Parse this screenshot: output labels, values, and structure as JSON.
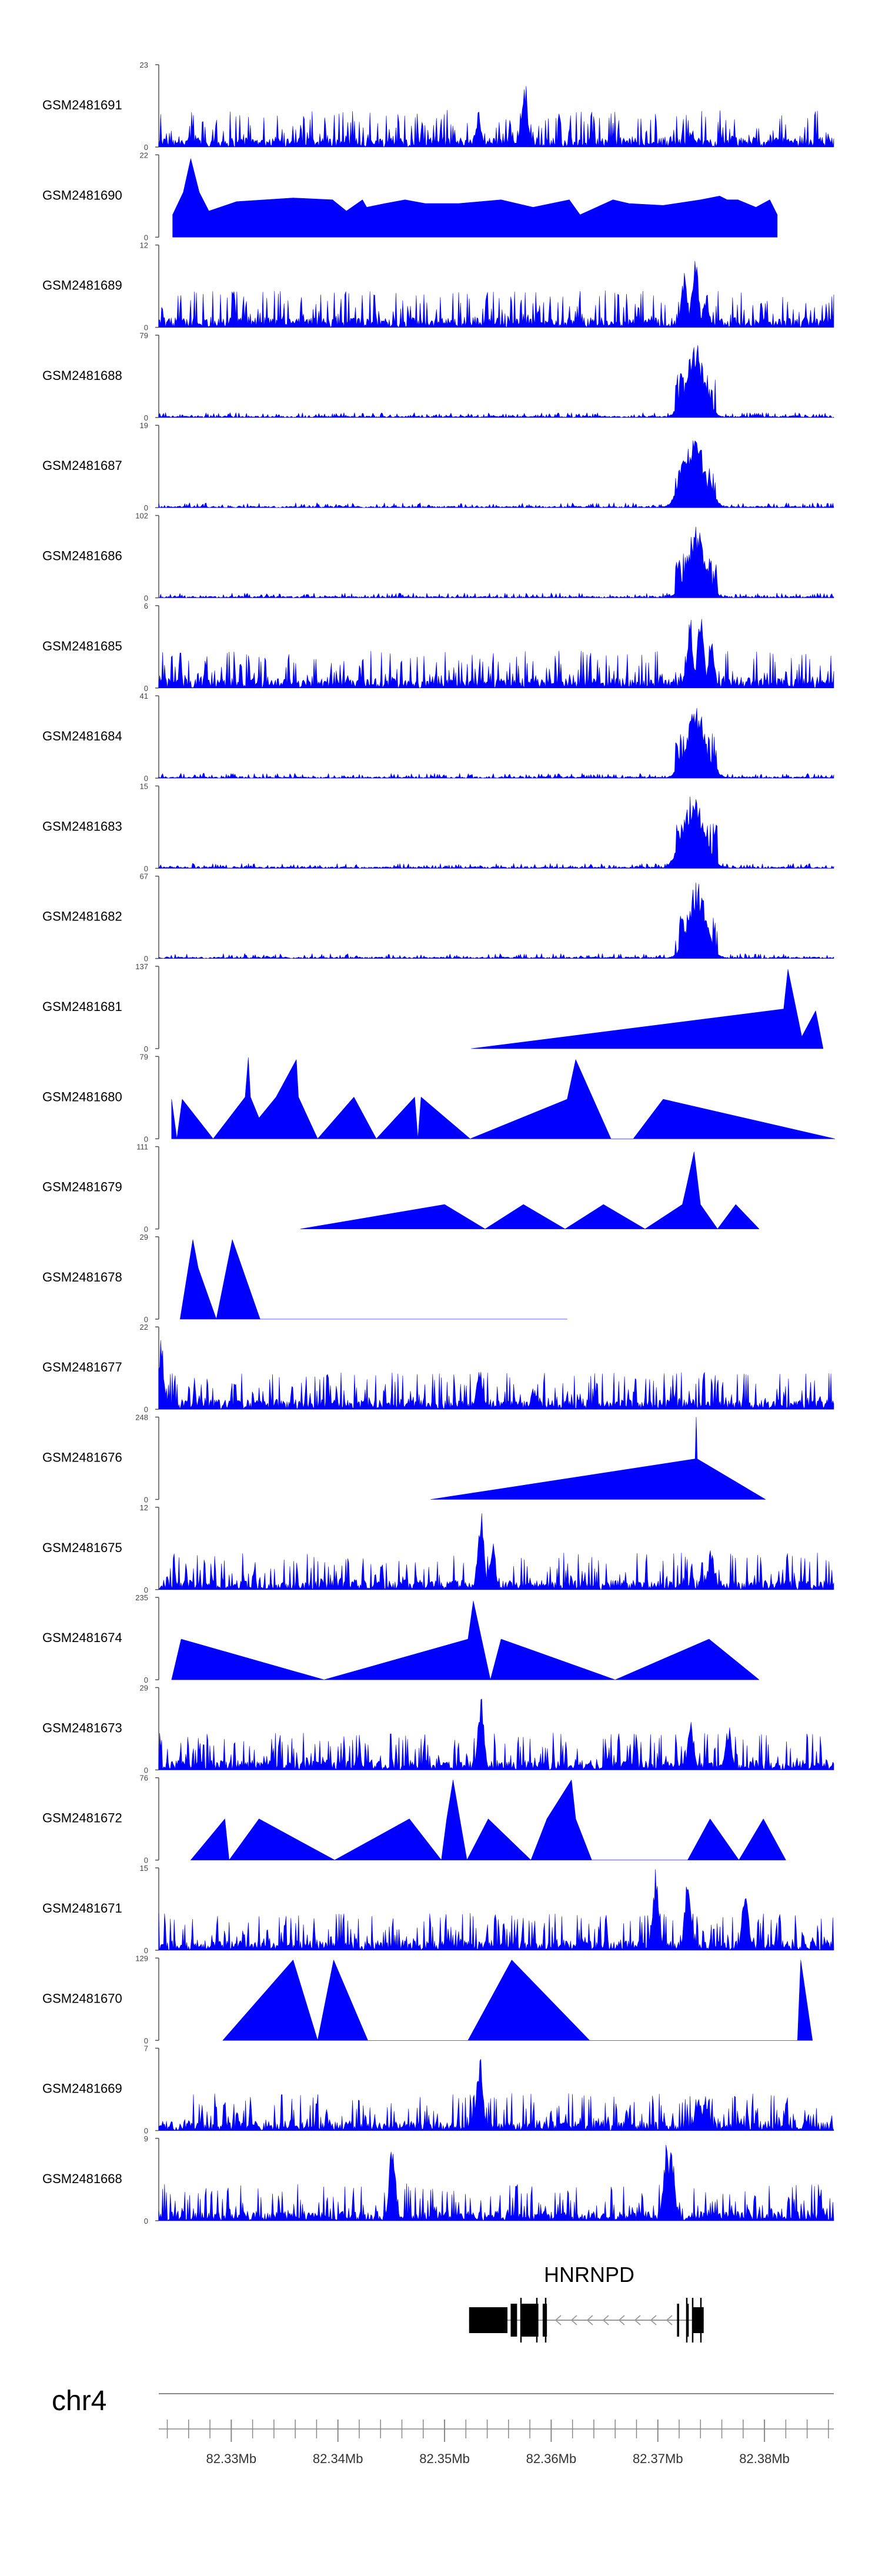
{
  "chart_data": {
    "type": "area",
    "title": "",
    "color": "#0000ff",
    "x_unit": "Mb",
    "xlim": [
      82.3232,
      82.3865
    ],
    "chromosome": "chr4",
    "axis_ticks": [
      {
        "value": 82.33,
        "label": "82.33Mb"
      },
      {
        "value": 82.34,
        "label": "82.34Mb"
      },
      {
        "value": 82.35,
        "label": "82.35Mb"
      },
      {
        "value": 82.36,
        "label": "82.36Mb"
      },
      {
        "value": 82.37,
        "label": "82.37Mb"
      },
      {
        "value": 82.38,
        "label": "82.38Mb"
      }
    ],
    "gene": {
      "name": "HNRNPD",
      "strand": "-",
      "start": 82.3523,
      "end": 82.3743,
      "exons": [
        [
          82.3523,
          82.3559
        ],
        [
          82.3562,
          82.3568
        ],
        [
          82.3572,
          82.3588
        ],
        [
          82.3592,
          82.3596
        ],
        [
          82.3718,
          82.372
        ],
        [
          82.3727,
          82.3729
        ],
        [
          82.3733,
          82.3743
        ]
      ]
    },
    "series": [
      {
        "name": "GSM2481691",
        "ymax": 23,
        "profile": "dense",
        "points": [
          [
            82.3532,
            8
          ],
          [
            82.3575,
            20
          ],
          [
            82.3732,
            5
          ]
        ]
      },
      {
        "name": "GSM2481690",
        "ymax": 22,
        "profile": "sparse",
        "points": [
          [
            82.3245,
            6
          ],
          [
            82.3255,
            12
          ],
          [
            82.3262,
            21
          ],
          [
            82.327,
            12
          ],
          [
            82.3279,
            7
          ],
          [
            82.3305,
            9.5
          ],
          [
            82.3358,
            10.5
          ],
          [
            82.3395,
            10
          ],
          [
            82.3408,
            7
          ],
          [
            82.3423,
            10
          ],
          [
            82.3427,
            8
          ],
          [
            82.3444,
            9
          ],
          [
            82.3463,
            10
          ],
          [
            82.3482,
            9
          ],
          [
            82.3513,
            9
          ],
          [
            82.3553,
            10
          ],
          [
            82.3583,
            8
          ],
          [
            82.3617,
            10
          ],
          [
            82.3627,
            6
          ],
          [
            82.3658,
            10
          ],
          [
            82.3673,
            9
          ],
          [
            82.3705,
            8.5
          ],
          [
            82.374,
            10
          ],
          [
            82.3758,
            11
          ],
          [
            82.3765,
            10
          ],
          [
            82.3775,
            10
          ],
          [
            82.3792,
            8
          ],
          [
            82.3805,
            10
          ],
          [
            82.3812,
            6
          ]
        ]
      },
      {
        "name": "GSM2481689",
        "ymax": 12,
        "profile": "dense",
        "points": [
          [
            82.3725,
            8
          ],
          [
            82.3735,
            12
          ],
          [
            82.3745,
            5
          ]
        ]
      },
      {
        "name": "GSM2481688",
        "ymax": 79,
        "profile": "peak",
        "points": [
          [
            82.373,
            40
          ],
          [
            82.3735,
            76
          ],
          [
            82.374,
            34
          ]
        ]
      },
      {
        "name": "GSM2481687",
        "ymax": 19,
        "profile": "peak",
        "points": [
          [
            82.3728,
            14
          ],
          [
            82.3735,
            19
          ],
          [
            82.3742,
            8
          ]
        ]
      },
      {
        "name": "GSM2481686",
        "ymax": 102,
        "profile": "peak",
        "points": [
          [
            82.373,
            40
          ],
          [
            82.3736,
            96
          ],
          [
            82.3742,
            30
          ]
        ]
      },
      {
        "name": "GSM2481685",
        "ymax": 6,
        "profile": "dense",
        "points": [
          [
            82.373,
            5.5
          ],
          [
            82.374,
            6
          ],
          [
            82.375,
            4
          ]
        ]
      },
      {
        "name": "GSM2481684",
        "ymax": 41,
        "profile": "peak",
        "points": [
          [
            82.373,
            20
          ],
          [
            82.3736,
            39
          ],
          [
            82.3744,
            15
          ]
        ]
      },
      {
        "name": "GSM2481683",
        "ymax": 15,
        "profile": "peak",
        "points": [
          [
            82.3728,
            11
          ],
          [
            82.3734,
            15
          ],
          [
            82.3742,
            6
          ]
        ]
      },
      {
        "name": "GSM2481682",
        "ymax": 67,
        "profile": "peak",
        "points": [
          [
            82.3732,
            30
          ],
          [
            82.3737,
            64
          ],
          [
            82.3742,
            25
          ]
        ]
      },
      {
        "name": "GSM2481681",
        "ymax": 137,
        "profile": "sparse",
        "points": [
          [
            82.3525,
            0
          ],
          [
            82.3818,
            66
          ],
          [
            82.3822,
            132
          ],
          [
            82.3835,
            20
          ],
          [
            82.3848,
            63
          ],
          [
            82.3855,
            0
          ]
        ]
      },
      {
        "name": "GSM2481680",
        "ymax": 79,
        "profile": "sparse",
        "points": [
          [
            82.3244,
            38
          ],
          [
            82.3249,
            0
          ],
          [
            82.3254,
            38
          ],
          [
            82.3283,
            0
          ],
          [
            82.3313,
            40
          ],
          [
            82.3316,
            78
          ],
          [
            82.3318,
            40
          ],
          [
            82.3326,
            20
          ],
          [
            82.3342,
            40
          ],
          [
            82.3361,
            76
          ],
          [
            82.3363,
            40
          ],
          [
            82.3381,
            0
          ],
          [
            82.3415,
            40
          ],
          [
            82.3436,
            0
          ],
          [
            82.3472,
            40
          ],
          [
            82.3475,
            0
          ],
          [
            82.3478,
            40
          ],
          [
            82.3524,
            0
          ],
          [
            82.3615,
            38
          ],
          [
            82.3623,
            76
          ],
          [
            82.3656,
            0
          ],
          [
            82.3677,
            0
          ],
          [
            82.3705,
            38
          ],
          [
            82.3866,
            0
          ]
        ]
      },
      {
        "name": "GSM2481679",
        "ymax": 111,
        "profile": "sparse",
        "points": [
          [
            82.3365,
            0
          ],
          [
            82.35,
            33
          ],
          [
            82.3538,
            0
          ],
          [
            82.3574,
            33
          ],
          [
            82.3613,
            0
          ],
          [
            82.3649,
            33
          ],
          [
            82.3688,
            0
          ],
          [
            82.3723,
            33
          ],
          [
            82.3727,
            58
          ],
          [
            82.3734,
            104
          ],
          [
            82.374,
            33
          ],
          [
            82.3756,
            0
          ],
          [
            82.3773,
            33
          ],
          [
            82.3795,
            0
          ]
        ]
      },
      {
        "name": "GSM2481678",
        "ymax": 29,
        "profile": "sparse",
        "points": [
          [
            82.3252,
            0
          ],
          [
            82.3264,
            28
          ],
          [
            82.3269,
            18
          ],
          [
            82.3286,
            0
          ],
          [
            82.3301,
            28
          ],
          [
            82.3327,
            0
          ],
          [
            82.3395,
            0
          ],
          [
            82.3474,
            0
          ],
          [
            82.3615,
            0
          ]
        ]
      },
      {
        "name": "GSM2481677",
        "ymax": 22,
        "profile": "dense",
        "points": [
          [
            82.3234,
            20
          ],
          [
            82.3533,
            12
          ],
          [
            82.3584,
            6
          ]
        ]
      },
      {
        "name": "GSM2481676",
        "ymax": 248,
        "profile": "sparse",
        "points": [
          [
            82.3487,
            0
          ],
          [
            82.3735,
            122
          ],
          [
            82.3736,
            248
          ],
          [
            82.3737,
            122
          ],
          [
            82.3801,
            0
          ]
        ]
      },
      {
        "name": "GSM2481675",
        "ymax": 12,
        "profile": "dense",
        "points": [
          [
            82.3534,
            12
          ],
          [
            82.3545,
            7
          ],
          [
            82.375,
            6
          ]
        ]
      },
      {
        "name": "GSM2481674",
        "ymax": 235,
        "profile": "sparse",
        "points": [
          [
            82.3244,
            0
          ],
          [
            82.3253,
            116
          ],
          [
            82.3387,
            0
          ],
          [
            82.3522,
            116
          ],
          [
            82.3527,
            225
          ],
          [
            82.3543,
            0
          ],
          [
            82.3553,
            116
          ],
          [
            82.366,
            0
          ],
          [
            82.3748,
            116
          ],
          [
            82.3795,
            0
          ]
        ]
      },
      {
        "name": "GSM2481673",
        "ymax": 29,
        "profile": "dense",
        "points": [
          [
            82.3534,
            28
          ],
          [
            82.3731,
            18
          ],
          [
            82.3766,
            17
          ]
        ]
      },
      {
        "name": "GSM2481672",
        "ymax": 76,
        "profile": "sparse",
        "points": [
          [
            82.3262,
            0
          ],
          [
            82.3294,
            38
          ],
          [
            82.3298,
            0
          ],
          [
            82.3326,
            38
          ],
          [
            82.3397,
            0
          ],
          [
            82.3467,
            38
          ],
          [
            82.3497,
            0
          ],
          [
            82.3502,
            38
          ],
          [
            82.3508,
            74
          ],
          [
            82.3521,
            0
          ],
          [
            82.3541,
            38
          ],
          [
            82.3581,
            0
          ],
          [
            82.3596,
            38
          ],
          [
            82.3619,
            74
          ],
          [
            82.3623,
            38
          ],
          [
            82.3638,
            0
          ],
          [
            82.3658,
            0
          ],
          [
            82.3728,
            0
          ],
          [
            82.3749,
            38
          ],
          [
            82.3776,
            0
          ],
          [
            82.3799,
            38
          ],
          [
            82.382,
            0
          ]
        ]
      },
      {
        "name": "GSM2481671",
        "ymax": 15,
        "profile": "dense",
        "points": [
          [
            82.3698,
            15
          ],
          [
            82.3728,
            14
          ],
          [
            82.3782,
            12
          ]
        ]
      },
      {
        "name": "GSM2481670",
        "ymax": 129,
        "profile": "sparse",
        "points": [
          [
            82.3292,
            0
          ],
          [
            82.3358,
            126
          ],
          [
            82.3381,
            0
          ],
          [
            82.3396,
            126
          ],
          [
            82.3428,
            0
          ],
          [
            82.3454,
            0
          ],
          [
            82.3522,
            0
          ],
          [
            82.3563,
            126
          ],
          [
            82.3636,
            0
          ],
          [
            82.3667,
            0
          ],
          [
            82.3831,
            0
          ],
          [
            82.3834,
            126
          ],
          [
            82.3845,
            0
          ]
        ]
      },
      {
        "name": "GSM2481669",
        "ymax": 7,
        "profile": "dense",
        "points": [
          [
            82.3533,
            7
          ],
          [
            82.3738,
            3.5
          ],
          [
            82.3745,
            3
          ]
        ]
      },
      {
        "name": "GSM2481668",
        "ymax": 9,
        "profile": "dense",
        "points": [
          [
            82.3451,
            9
          ],
          [
            82.3708,
            9
          ],
          [
            82.3713,
            8
          ]
        ]
      }
    ]
  }
}
